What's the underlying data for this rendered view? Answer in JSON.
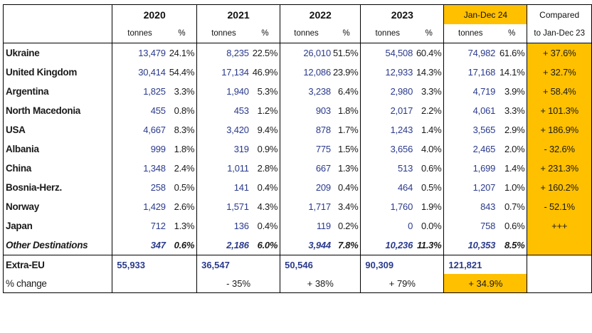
{
  "caption_fragment": "",
  "header": {
    "years": [
      "2020",
      "2021",
      "2022",
      "2023"
    ],
    "current_period": "Jan-Dec 24",
    "compared_label": "Compared",
    "compared_sub": "to Jan-Dec 23",
    "unit_tonnes": "tonnes",
    "unit_pct": "%"
  },
  "rows": [
    {
      "country": "Ukraine",
      "v2020": "13,479",
      "p2020": "24.1%",
      "v2021": "8,235",
      "p2021": "22.5%",
      "v2022": "26,010",
      "p2022": "51.5%",
      "v2023": "54,508",
      "p2023": "60.4%",
      "v2024": "74,982",
      "p2024": "61.6%",
      "cmp": "+ 37.6%"
    },
    {
      "country": "United Kingdom",
      "v2020": "30,414",
      "p2020": "54.4%",
      "v2021": "17,134",
      "p2021": "46.9%",
      "v2022": "12,086",
      "p2022": "23.9%",
      "v2023": "12,933",
      "p2023": "14.3%",
      "v2024": "17,168",
      "p2024": "14.1%",
      "cmp": "+ 32.7%"
    },
    {
      "country": "Argentina",
      "v2020": "1,825",
      "p2020": "3.3%",
      "v2021": "1,940",
      "p2021": "5.3%",
      "v2022": "3,238",
      "p2022": "6.4%",
      "v2023": "2,980",
      "p2023": "3.3%",
      "v2024": "4,719",
      "p2024": "3.9%",
      "cmp": "+ 58.4%"
    },
    {
      "country": "North Macedonia",
      "v2020": "455",
      "p2020": "0.8%",
      "v2021": "453",
      "p2021": "1.2%",
      "v2022": "903",
      "p2022": "1.8%",
      "v2023": "2,017",
      "p2023": "2.2%",
      "v2024": "4,061",
      "p2024": "3.3%",
      "cmp": "+ 101.3%"
    },
    {
      "country": "USA",
      "v2020": "4,667",
      "p2020": "8.3%",
      "v2021": "3,420",
      "p2021": "9.4%",
      "v2022": "878",
      "p2022": "1.7%",
      "v2023": "1,243",
      "p2023": "1.4%",
      "v2024": "3,565",
      "p2024": "2.9%",
      "cmp": "+ 186.9%"
    },
    {
      "country": "Albania",
      "v2020": "999",
      "p2020": "1.8%",
      "v2021": "319",
      "p2021": "0.9%",
      "v2022": "775",
      "p2022": "1.5%",
      "v2023": "3,656",
      "p2023": "4.0%",
      "v2024": "2,465",
      "p2024": "2.0%",
      "cmp": "- 32.6%"
    },
    {
      "country": "China",
      "v2020": "1,348",
      "p2020": "2.4%",
      "v2021": "1,011",
      "p2021": "2.8%",
      "v2022": "667",
      "p2022": "1.3%",
      "v2023": "513",
      "p2023": "0.6%",
      "v2024": "1,699",
      "p2024": "1.4%",
      "cmp": "+ 231.3%"
    },
    {
      "country": "Bosnia-Herz.",
      "v2020": "258",
      "p2020": "0.5%",
      "v2021": "141",
      "p2021": "0.4%",
      "v2022": "209",
      "p2022": "0.4%",
      "v2023": "464",
      "p2023": "0.5%",
      "v2024": "1,207",
      "p2024": "1.0%",
      "cmp": "+ 160.2%"
    },
    {
      "country": "Norway",
      "v2020": "1,429",
      "p2020": "2.6%",
      "v2021": "1,571",
      "p2021": "4.3%",
      "v2022": "1,717",
      "p2022": "3.4%",
      "v2023": "1,760",
      "p2023": "1.9%",
      "v2024": "843",
      "p2024": "0.7%",
      "cmp": "- 52.1%"
    },
    {
      "country": "Japan",
      "v2020": "712",
      "p2020": "1.3%",
      "v2021": "136",
      "p2021": "0.4%",
      "v2022": "119",
      "p2022": "0.2%",
      "v2023": "0",
      "p2023": "0.0%",
      "v2024": "758",
      "p2024": "0.6%",
      "cmp": "+++"
    }
  ],
  "other": {
    "country": "Other Destinations",
    "v2020": "347",
    "p2020": "0.6%",
    "v2021": "2,186",
    "p2021": "6.0%",
    "v2022": "3,944",
    "p2022": "7.8%",
    "v2023": "10,236",
    "p2023": "11.3%",
    "v2024": "10,353",
    "p2024": "8.5%",
    "cmp": ""
  },
  "extra_eu": {
    "label": "Extra-EU",
    "v2020": "55,933",
    "v2021": "36,547",
    "v2022": "50,546",
    "v2023": "90,309",
    "v2024": "121,821"
  },
  "pct_change": {
    "label": "% change",
    "v2021": "- 35%",
    "v2022": "+ 38%",
    "v2023": "+ 79%",
    "v2024": "+ 34.9%"
  },
  "colors": {
    "highlight": "#ffc000",
    "number": "#2a3a8c",
    "text": "#1a1a1a"
  }
}
